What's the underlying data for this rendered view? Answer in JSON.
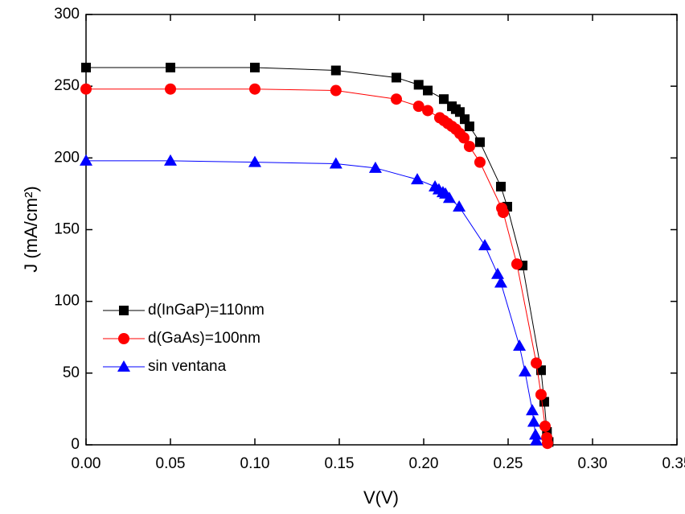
{
  "chart_data": {
    "type": "line",
    "xlabel": "V(V)",
    "ylabel": "J (mA/cm²)",
    "xlim": [
      0,
      0.35
    ],
    "ylim": [
      0,
      300
    ],
    "xticks": [
      {
        "value": 0,
        "label": "0.00"
      },
      {
        "value": 0.05,
        "label": "0.05"
      },
      {
        "value": 0.1,
        "label": "0.10"
      },
      {
        "value": 0.15,
        "label": "0.15"
      },
      {
        "value": 0.2,
        "label": "0.20"
      },
      {
        "value": 0.25,
        "label": "0.25"
      },
      {
        "value": 0.3,
        "label": "0.30"
      },
      {
        "value": 0.35,
        "label": "0.35"
      }
    ],
    "yticks": [
      0,
      50,
      100,
      150,
      200,
      250,
      300
    ],
    "legend": "lower left",
    "series": [
      {
        "name": "d(InGaP)=110nm",
        "color": "#000000",
        "marker": "square",
        "x": [
          0,
          0.05,
          0.1,
          0.148,
          0.1838,
          0.197,
          0.2024,
          0.2119,
          0.2167,
          0.219,
          0.2214,
          0.2243,
          0.2271,
          0.2333,
          0.2457,
          0.2495,
          0.2586,
          0.2695,
          0.2714,
          0.273,
          0.274
        ],
        "values": [
          263,
          263,
          263,
          261,
          256,
          251,
          247,
          241,
          236,
          234,
          232,
          227,
          222,
          211,
          180,
          166,
          125,
          52,
          30,
          9,
          2
        ]
      },
      {
        "name": "d(GaAs)=100nm",
        "color": "#ff0000",
        "marker": "circle",
        "x": [
          0,
          0.05,
          0.1,
          0.148,
          0.1838,
          0.197,
          0.2024,
          0.2095,
          0.212,
          0.2143,
          0.2167,
          0.219,
          0.2214,
          0.2238,
          0.2271,
          0.2333,
          0.2462,
          0.2471,
          0.2552,
          0.2667,
          0.2695,
          0.2719,
          0.2729,
          0.2733
        ],
        "values": [
          248,
          248,
          248,
          247,
          241,
          236,
          233,
          228,
          226,
          224,
          222,
          220,
          217,
          214,
          208,
          197,
          165,
          162,
          126,
          57,
          35,
          13,
          5,
          1
        ]
      },
      {
        "name": "sin ventana",
        "color": "#0000ff",
        "marker": "triangle",
        "x": [
          0,
          0.05,
          0.1,
          0.148,
          0.1714,
          0.1962,
          0.2067,
          0.209,
          0.2114,
          0.2129,
          0.2152,
          0.221,
          0.2362,
          0.2438,
          0.2457,
          0.2567,
          0.26,
          0.2643,
          0.2652,
          0.2662,
          0.2667
        ],
        "values": [
          198,
          198,
          197,
          196,
          193,
          185,
          180,
          178,
          176,
          175,
          172,
          166,
          139,
          119,
          113,
          69,
          51,
          24,
          16,
          7,
          3
        ]
      }
    ]
  }
}
